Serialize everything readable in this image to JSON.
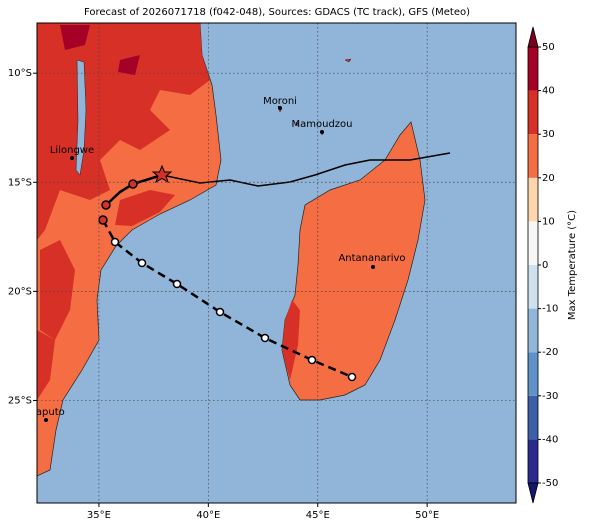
{
  "map": {
    "title": "Forecast of 2026071718 (f042-048), Sources: GDACS (TC track), GFS (Meteo)",
    "lon_lim": [
      32.17,
      54.06
    ],
    "lat_lim": [
      -7.7,
      -29.7
    ],
    "lon_ticks": [
      {
        "value": 35,
        "label": "35°E"
      },
      {
        "value": 40,
        "label": "40°E"
      },
      {
        "value": 45,
        "label": "45°E"
      },
      {
        "value": 50,
        "label": "50°E"
      }
    ],
    "lat_ticks": [
      {
        "value": -10,
        "label": "10°S"
      },
      {
        "value": -15,
        "label": "15°S"
      },
      {
        "value": -20,
        "label": "20°S"
      },
      {
        "value": -25,
        "label": "25°S"
      }
    ],
    "grid": true,
    "cities": [
      "Moroni",
      "Mamoudzou",
      "Lilongwe",
      "Antananarivo",
      "Maputo"
    ],
    "colorbar": {
      "label": "Max Temperature (°C)",
      "lim": [
        -50,
        50
      ],
      "ticks": [
        -50,
        -40,
        -30,
        -20,
        -10,
        0,
        10,
        20,
        30,
        40,
        50
      ],
      "colors": [
        "#2b2b8f",
        "#3d5fa8",
        "#5f92c6",
        "#92b5da",
        "#cfe1ef",
        "#f7f7f7",
        "#fdd6ae",
        "#f46d43",
        "#d73027",
        "#a50026"
      ],
      "under_color": "#16166a",
      "over_color": "#7a001d"
    }
  }
}
